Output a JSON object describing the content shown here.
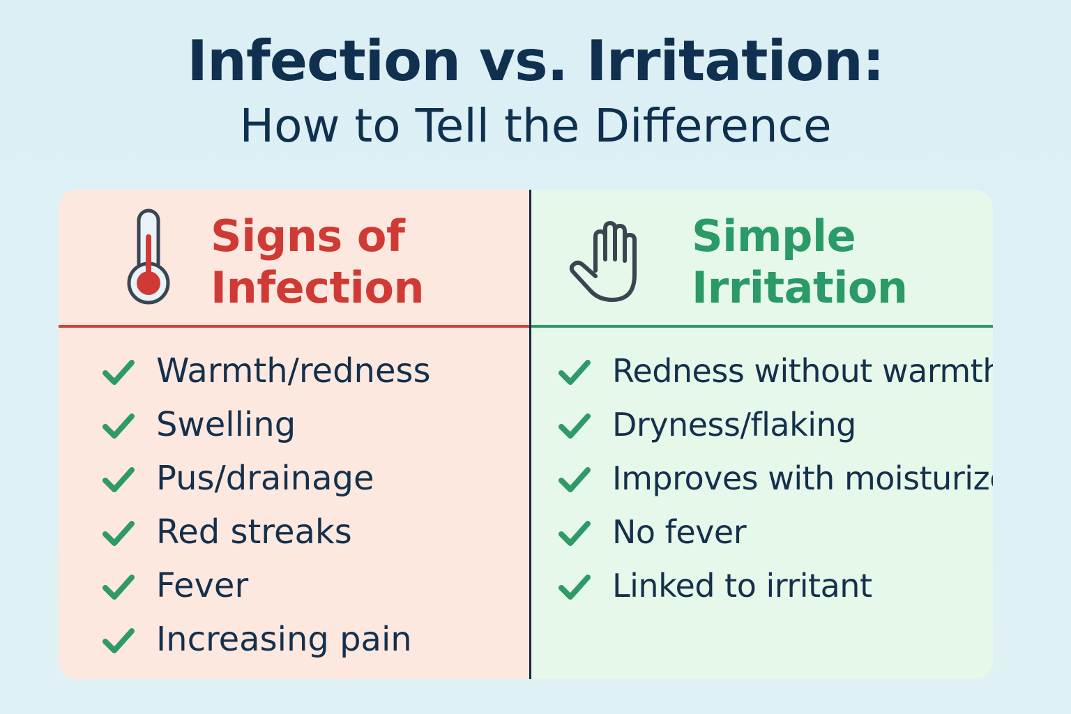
{
  "header": {
    "title": "Infection vs. Irritation:",
    "subtitle": "How to Tell the Difference"
  },
  "colors": {
    "background": "#dbeff5",
    "title": "#10304f",
    "infection_accent": "#d03a34",
    "infection_bg": "#fde8e0",
    "irritation_accent": "#2a9a66",
    "irritation_bg": "#e6f8ea",
    "check": "#2f9a68",
    "text": "#14304c"
  },
  "infection": {
    "icon": "thermometer-icon",
    "title_line1": "Signs of",
    "title_line2": "Infection",
    "items": [
      "Warmth/redness",
      "Swelling",
      "Pus/drainage",
      "Red streaks",
      "Fever",
      "Increasing pain"
    ]
  },
  "irritation": {
    "icon": "hand-icon",
    "title_line1": "Simple",
    "title_line2": "Irritation",
    "items": [
      "Redness without warmth",
      "Dryness/flaking",
      "Improves with moisturizer",
      "No fever",
      "Linked to irritant"
    ]
  }
}
